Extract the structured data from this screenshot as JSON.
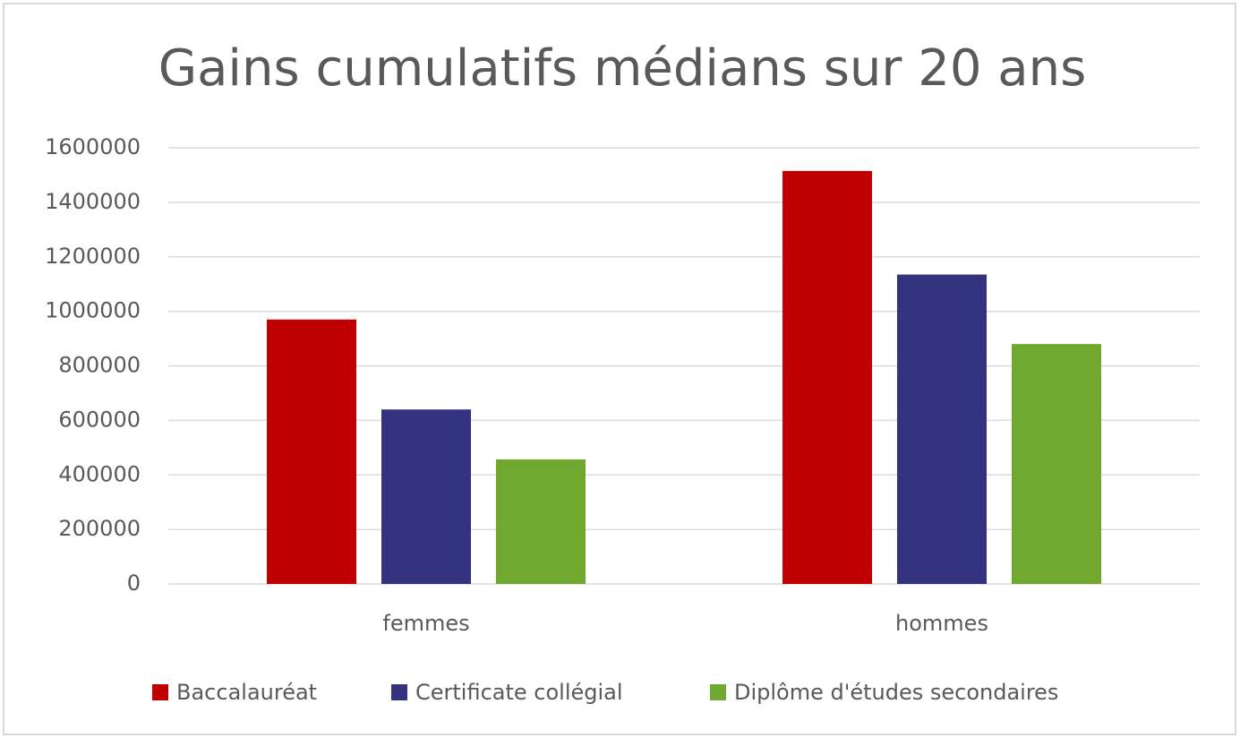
{
  "chart_data": {
    "type": "bar",
    "title": "Gains cumulatifs médians sur 20 ans",
    "categories": [
      "femmes",
      "hommes"
    ],
    "series": [
      {
        "name": "Baccalauréat",
        "color": "#c00000",
        "values": [
          970000,
          1515000
        ]
      },
      {
        "name": "Certificate collégial",
        "color": "#333380",
        "values": [
          640000,
          1135000
        ]
      },
      {
        "name": "Diplôme d'études secondaires",
        "color": "#70a830",
        "values": [
          457000,
          880000
        ]
      }
    ],
    "ylim": [
      0,
      1600000
    ],
    "yticks": [
      0,
      200000,
      400000,
      600000,
      800000,
      1000000,
      1200000,
      1400000,
      1600000
    ],
    "grid": true,
    "legend": "bottom"
  }
}
